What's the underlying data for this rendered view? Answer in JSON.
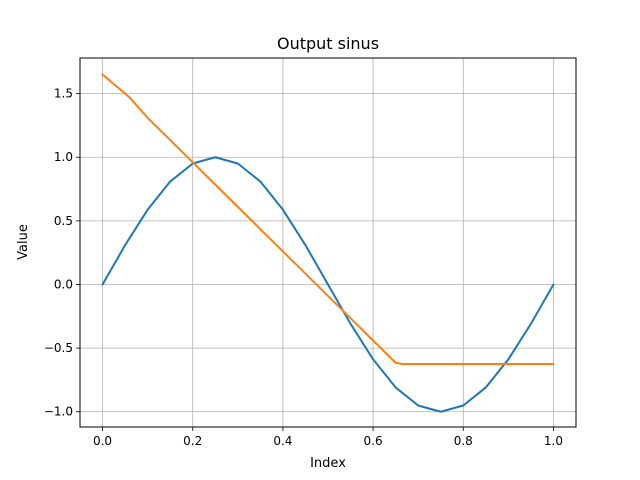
{
  "chart_data": {
    "type": "line",
    "title": "Output sinus",
    "xlabel": "Index",
    "ylabel": "Value",
    "xlim": [
      -0.05,
      1.05
    ],
    "ylim": [
      -1.12,
      1.78
    ],
    "grid": true,
    "x_ticks": [
      0.0,
      0.2,
      0.4,
      0.6,
      0.8,
      1.0
    ],
    "x_tick_labels": [
      "0.0",
      "0.2",
      "0.4",
      "0.6",
      "0.8",
      "1.0"
    ],
    "y_ticks": [
      -1.0,
      -0.5,
      0.0,
      0.5,
      1.0,
      1.5
    ],
    "y_tick_labels": [
      "−1.0",
      "−0.5",
      "0.0",
      "0.5",
      "1.0",
      "1.5"
    ],
    "series": [
      {
        "color": "#1f77b4",
        "x": [
          0.0,
          0.05,
          0.1,
          0.15,
          0.2,
          0.25,
          0.3,
          0.35,
          0.4,
          0.45,
          0.5,
          0.55,
          0.6,
          0.65,
          0.7,
          0.75,
          0.8,
          0.85,
          0.9,
          0.95,
          1.0
        ],
        "y": [
          0.0,
          0.309,
          0.588,
          0.809,
          0.951,
          1.0,
          0.951,
          0.809,
          0.588,
          0.309,
          0.0,
          -0.309,
          -0.588,
          -0.809,
          -0.951,
          -1.0,
          -0.951,
          -0.809,
          -0.588,
          -0.309,
          0.0
        ]
      },
      {
        "color": "#ff7f0e",
        "x": [
          0.0,
          0.06,
          0.1,
          0.2,
          0.3,
          0.4,
          0.5,
          0.6,
          0.65,
          0.665,
          0.7,
          0.8,
          0.9,
          1.0
        ],
        "y": [
          1.65,
          1.47,
          1.31,
          0.96,
          0.61,
          0.26,
          -0.09,
          -0.44,
          -0.615,
          -0.625,
          -0.625,
          -0.625,
          -0.625,
          -0.625
        ]
      }
    ]
  }
}
